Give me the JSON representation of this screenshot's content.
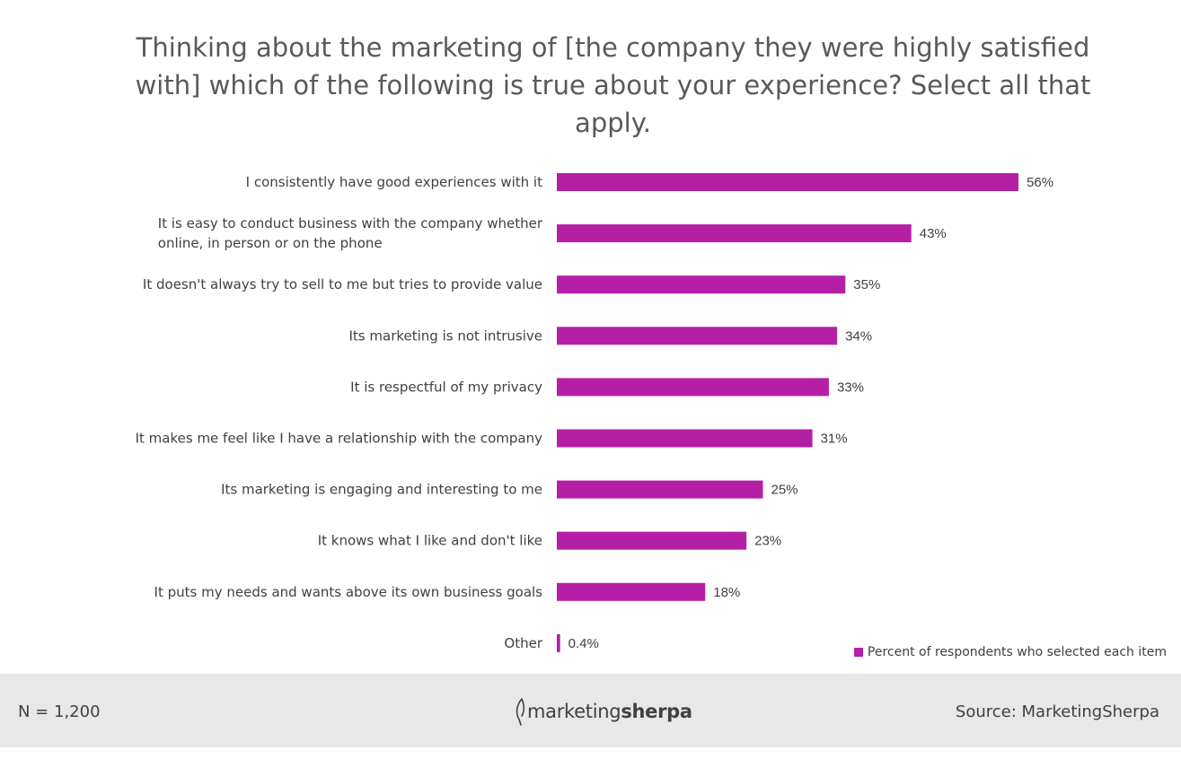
{
  "chart_data": {
    "type": "bar",
    "orientation": "horizontal",
    "title": "Thinking about the marketing of [the company they were highly satisfied with] which of the following is true about your experience? Select all that apply.",
    "categories": [
      [
        "I consistently have good experiences with it"
      ],
      [
        "It is easy to conduct business with the company whether",
        "online, in person or on the phone"
      ],
      [
        "It doesn't always try to sell to me but tries to provide value"
      ],
      [
        "Its marketing is not intrusive"
      ],
      [
        "It is respectful of my privacy"
      ],
      [
        "It makes me feel like I have a relationship with the company"
      ],
      [
        "Its marketing is engaging and interesting to me"
      ],
      [
        "It knows what I like and don't like"
      ],
      [
        "It puts my needs and wants above its own business goals"
      ],
      [
        "Other"
      ]
    ],
    "values": [
      56,
      43,
      35,
      34,
      33,
      31,
      25,
      23,
      18,
      0.4
    ],
    "value_labels": [
      "56%",
      "43%",
      "35%",
      "34%",
      "33%",
      "31%",
      "25%",
      "23%",
      "18%",
      "0.4%"
    ],
    "series": [
      {
        "name": "Percent of respondents who selected each item",
        "color": "#b51fa6"
      }
    ],
    "xlim": [
      0,
      60
    ],
    "grid": false,
    "legend_position": "bottom-right"
  },
  "footer": {
    "n_label": "N = 1,200",
    "source_label": "Source: MarketingSherpa",
    "logo_regular": "marketing",
    "logo_bold": "sherpa"
  }
}
